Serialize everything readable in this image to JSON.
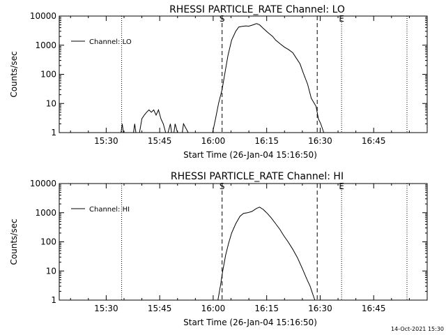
{
  "footer": {
    "timestamp": "14-Oct-2021 15:30"
  },
  "chart_data": [
    {
      "type": "line",
      "title": "RHESSI PARTICLE_RATE Channel: LO",
      "xlabel": "Start Time (26-Jan-04 15:16:50)",
      "ylabel": "Counts/sec",
      "yscale": "log",
      "ylim": [
        1,
        10000
      ],
      "xlim": [
        "15:16:50",
        "17:00:00"
      ],
      "x_ticks": [
        "15:30",
        "15:45",
        "16:00",
        "16:15",
        "16:30",
        "16:45"
      ],
      "y_ticks": [
        "1",
        "10",
        "100",
        "1000",
        "10000"
      ],
      "legend": {
        "position": "top-left",
        "entries": [
          "Channel: LO"
        ]
      },
      "series": [
        {
          "name": "Channel: LO",
          "x": [
            "15:34:10",
            "15:34:30",
            "15:34:50",
            "15:37:40",
            "15:38:00",
            "15:38:20",
            "15:39:20",
            "15:40:00",
            "15:40:40",
            "15:41:20",
            "15:42:00",
            "15:42:40",
            "15:43:20",
            "15:44:00",
            "15:44:40",
            "15:45:20",
            "15:46:00",
            "15:46:40",
            "15:47:20",
            "15:48:00",
            "15:48:20",
            "15:49:00",
            "15:49:20",
            "15:50:00",
            "15:51:20",
            "15:51:40",
            "15:53:00",
            "15:59:50",
            "16:00:40",
            "16:01:30",
            "16:02:30",
            "16:03:20",
            "16:04:10",
            "16:05:10",
            "16:06:20",
            "16:07:10",
            "16:08:00",
            "16:09:10",
            "16:10:00",
            "16:11:10",
            "16:12:10",
            "16:13:00",
            "16:14:00",
            "16:15:30",
            "16:16:40",
            "16:17:30",
            "16:18:50",
            "16:20:00",
            "16:21:10",
            "16:22:20",
            "16:23:10",
            "16:24:20",
            "16:25:10",
            "16:26:30",
            "16:27:30",
            "16:28:50",
            "16:29:30",
            "16:30:10",
            "16:31:00"
          ],
          "values": [
            1,
            2,
            1,
            1,
            2,
            1,
            1,
            3,
            4,
            5,
            6,
            5,
            6,
            4,
            6,
            3,
            2,
            1,
            1,
            2,
            1,
            1,
            2,
            1,
            1,
            2,
            1,
            1,
            3,
            10,
            30,
            120,
            450,
            1500,
            3000,
            4200,
            4400,
            4600,
            4500,
            5000,
            5500,
            5000,
            3800,
            2600,
            2000,
            1500,
            1100,
            850,
            700,
            550,
            380,
            230,
            120,
            45,
            15,
            8,
            3,
            2,
            1
          ]
        }
      ],
      "annotations": [
        {
          "label": "S",
          "x": "16:02:30",
          "style": "dashed"
        },
        {
          "label": "",
          "x": "16:29:10",
          "style": "dashed"
        },
        {
          "label": "E",
          "x": "16:36:00",
          "style": "dotted"
        },
        {
          "label": "",
          "x": "15:34:20",
          "style": "dotted"
        },
        {
          "label": "",
          "x": "16:54:20",
          "style": "dotted"
        }
      ]
    },
    {
      "type": "line",
      "title": "RHESSI PARTICLE_RATE Channel: HI",
      "xlabel": "Start Time (26-Jan-04 15:16:50)",
      "ylabel": "Counts/sec",
      "yscale": "log",
      "ylim": [
        1,
        10000
      ],
      "xlim": [
        "15:16:50",
        "17:00:00"
      ],
      "x_ticks": [
        "15:30",
        "15:45",
        "16:00",
        "16:15",
        "16:30",
        "16:45"
      ],
      "y_ticks": [
        "1",
        "10",
        "100",
        "1000",
        "10000"
      ],
      "legend": {
        "position": "top-left",
        "entries": [
          "Channel: HI"
        ]
      },
      "series": [
        {
          "name": "Channel: HI",
          "x": [
            "16:01:20",
            "16:02:00",
            "16:02:40",
            "16:03:30",
            "16:04:20",
            "16:05:10",
            "16:06:20",
            "16:07:30",
            "16:08:30",
            "16:09:40",
            "16:10:50",
            "16:12:10",
            "16:13:00",
            "16:14:00",
            "16:15:10",
            "16:16:20",
            "16:17:30",
            "16:18:40",
            "16:19:50",
            "16:21:00",
            "16:22:20",
            "16:23:40",
            "16:25:00",
            "16:26:20",
            "16:27:10",
            "16:28:00",
            "16:28:30"
          ],
          "values": [
            1,
            3,
            10,
            35,
            90,
            200,
            420,
            750,
            950,
            1000,
            1100,
            1400,
            1550,
            1300,
            950,
            650,
            420,
            270,
            160,
            100,
            55,
            28,
            12,
            5,
            3,
            1.5,
            1
          ]
        }
      ],
      "annotations": [
        {
          "label": "S",
          "x": "16:02:30",
          "style": "dashed"
        },
        {
          "label": "",
          "x": "16:29:10",
          "style": "dashed"
        },
        {
          "label": "E",
          "x": "16:36:00",
          "style": "dotted"
        },
        {
          "label": "",
          "x": "15:34:20",
          "style": "dotted"
        },
        {
          "label": "",
          "x": "16:54:20",
          "style": "dotted"
        }
      ]
    }
  ]
}
